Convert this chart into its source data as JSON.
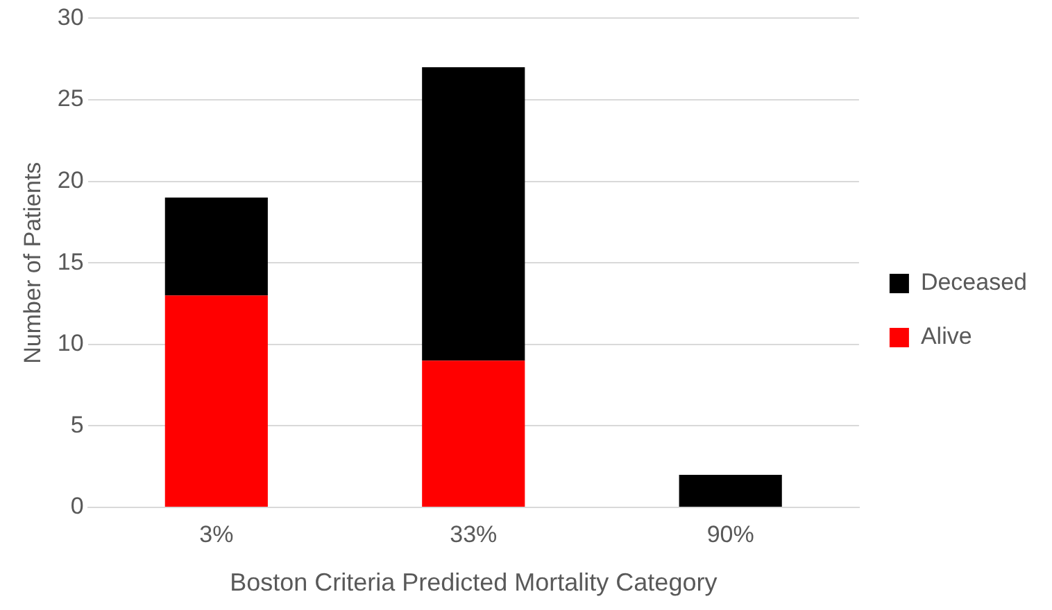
{
  "chart_data": {
    "type": "bar",
    "stacked": true,
    "xlabel": "Boston Criteria Predicted Mortality Category",
    "ylabel": "Number of Patients",
    "categories": [
      "3%",
      "33%",
      "90%"
    ],
    "series": [
      {
        "name": "Alive",
        "color": "#ff0000",
        "values": [
          13,
          9,
          0
        ]
      },
      {
        "name": "Deceased",
        "color": "#000000",
        "values": [
          6,
          18,
          2
        ]
      }
    ],
    "ylim": [
      0,
      30
    ],
    "yticks": [
      0,
      5,
      10,
      15,
      20,
      25,
      30
    ],
    "grid": "y",
    "legend": "right"
  }
}
